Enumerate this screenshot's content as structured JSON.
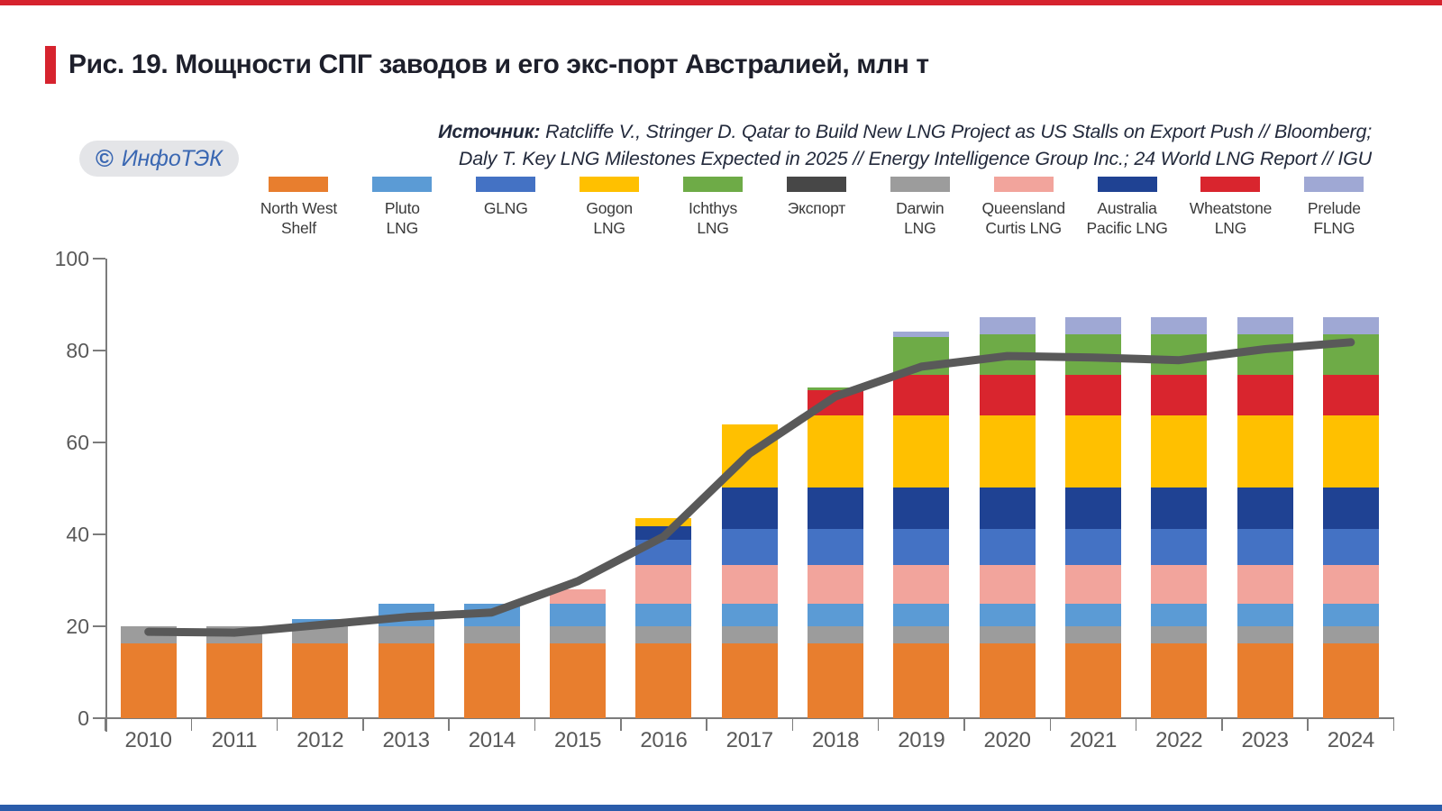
{
  "title": {
    "text": "Рис. 19. Мощности СПГ заводов и его экс-порт Австралией, млн т"
  },
  "badge": {
    "copyright": "©",
    "name": "ИнфоТЭК"
  },
  "source": {
    "label": "Источник:",
    "line1": " Ratcliffe V., Stringer D. Qatar to Build New LNG Project as US Stalls on Export Push // Bloomberg;",
    "line2": "Daly T. Key LNG Milestones Expected in 2025 // Energy Intelligence Group Inc.; 24 World LNG Report // IGU"
  },
  "colors": {
    "accent_red": "#d6232e",
    "top_strip": "#d6232e",
    "bottom_strip": "#2a5caa",
    "axis": "#7c7c7c",
    "tick_label": "#595959"
  },
  "chart_data": {
    "type": "bar",
    "stacked": true,
    "title": "Мощности СПГ заводов и его экспорт Австралией",
    "unit": "млн т",
    "categories": [
      "2010",
      "2011",
      "2012",
      "2013",
      "2014",
      "2015",
      "2016",
      "2017",
      "2018",
      "2019",
      "2020",
      "2021",
      "2022",
      "2023",
      "2024"
    ],
    "ylim": [
      0,
      100
    ],
    "yticks": [
      0,
      20,
      40,
      60,
      80,
      100
    ],
    "grid": false,
    "legend_position": "top",
    "series": [
      {
        "name": "North West Shelf",
        "color": "#e87e2e",
        "values": [
          16.3,
          16.3,
          16.3,
          16.3,
          16.3,
          16.3,
          16.3,
          16.3,
          16.3,
          16.3,
          16.3,
          16.3,
          16.3,
          16.3,
          16.3
        ]
      },
      {
        "name": "Darwin LNG",
        "color": "#9c9c9c",
        "values": [
          3.7,
          3.7,
          3.7,
          3.7,
          3.7,
          3.7,
          3.7,
          3.7,
          3.7,
          3.7,
          3.7,
          3.7,
          3.7,
          3.7,
          3.7
        ]
      },
      {
        "name": "Pluto LNG",
        "color": "#5b9bd5",
        "values": [
          0,
          0,
          1.6,
          4.9,
          4.9,
          4.9,
          4.9,
          4.9,
          4.9,
          4.9,
          4.9,
          4.9,
          4.9,
          4.9,
          4.9
        ]
      },
      {
        "name": "Queensland Curtis LNG",
        "color": "#f2a49c",
        "values": [
          0,
          0,
          0,
          0,
          0,
          3.2,
          8.5,
          8.5,
          8.5,
          8.5,
          8.5,
          8.5,
          8.5,
          8.5,
          8.5
        ]
      },
      {
        "name": "GLNG",
        "color": "#4472c4",
        "values": [
          0,
          0,
          0,
          0,
          0,
          0,
          5.4,
          7.8,
          7.8,
          7.8,
          7.8,
          7.8,
          7.8,
          7.8,
          7.8
        ]
      },
      {
        "name": "Australia Pacific LNG",
        "color": "#1f4293",
        "values": [
          0,
          0,
          0,
          0,
          0,
          0,
          3.0,
          9.0,
          9.0,
          9.0,
          9.0,
          9.0,
          9.0,
          9.0,
          9.0
        ]
      },
      {
        "name": "Gogon LNG",
        "color": "#ffc000",
        "values": [
          0,
          0,
          0,
          0,
          0,
          0,
          1.7,
          13.7,
          15.6,
          15.6,
          15.6,
          15.6,
          15.6,
          15.6,
          15.6
        ]
      },
      {
        "name": "Wheatstone LNG",
        "color": "#d9252e",
        "values": [
          0,
          0,
          0,
          0,
          0,
          0,
          0,
          0,
          5.5,
          8.9,
          8.9,
          8.9,
          8.9,
          8.9,
          8.9
        ]
      },
      {
        "name": "Ichthys LNG",
        "color": "#6eab47",
        "values": [
          0,
          0,
          0,
          0,
          0,
          0,
          0,
          0,
          0.6,
          8.2,
          8.9,
          8.9,
          8.9,
          8.9,
          8.9
        ]
      },
      {
        "name": "Prelude FLNG",
        "color": "#9fa8d4",
        "values": [
          0,
          0,
          0,
          0,
          0,
          0,
          0,
          0,
          0,
          1.3,
          3.6,
          3.6,
          3.6,
          3.6,
          3.6
        ]
      }
    ],
    "line_series": {
      "name": "Экспорт",
      "color": "#595959",
      "legend_swatch_color": "#474747",
      "values": [
        18.8,
        18.6,
        20.3,
        22.0,
        23.0,
        29.8,
        39.5,
        57.6,
        70.0,
        76.5,
        78.8,
        78.5,
        77.9,
        80.3,
        81.8
      ]
    },
    "legend": [
      {
        "series": "North West Shelf",
        "label_lines": [
          "North West",
          "Shelf"
        ]
      },
      {
        "series": "Pluto LNG",
        "label_lines": [
          "Pluto",
          "LNG"
        ]
      },
      {
        "series": "GLNG",
        "label_lines": [
          "GLNG"
        ]
      },
      {
        "series": "Gogon LNG",
        "label_lines": [
          "Gogon",
          "LNG"
        ]
      },
      {
        "series": "Ichthys LNG",
        "label_lines": [
          "Ichthys",
          "LNG"
        ]
      },
      {
        "series": "Экспорт",
        "label_lines": [
          "Экспорт"
        ]
      },
      {
        "series": "Darwin LNG",
        "label_lines": [
          "Darwin",
          "LNG"
        ]
      },
      {
        "series": "Queensland Curtis LNG",
        "label_lines": [
          "Queensland",
          "Curtis LNG"
        ]
      },
      {
        "series": "Australia Pacific LNG",
        "label_lines": [
          "Australia",
          "Pacific LNG"
        ]
      },
      {
        "series": "Wheatstone LNG",
        "label_lines": [
          "Wheatstone",
          "LNG"
        ]
      },
      {
        "series": "Prelude FLNG",
        "label_lines": [
          "Prelude",
          "FLNG"
        ]
      }
    ]
  }
}
